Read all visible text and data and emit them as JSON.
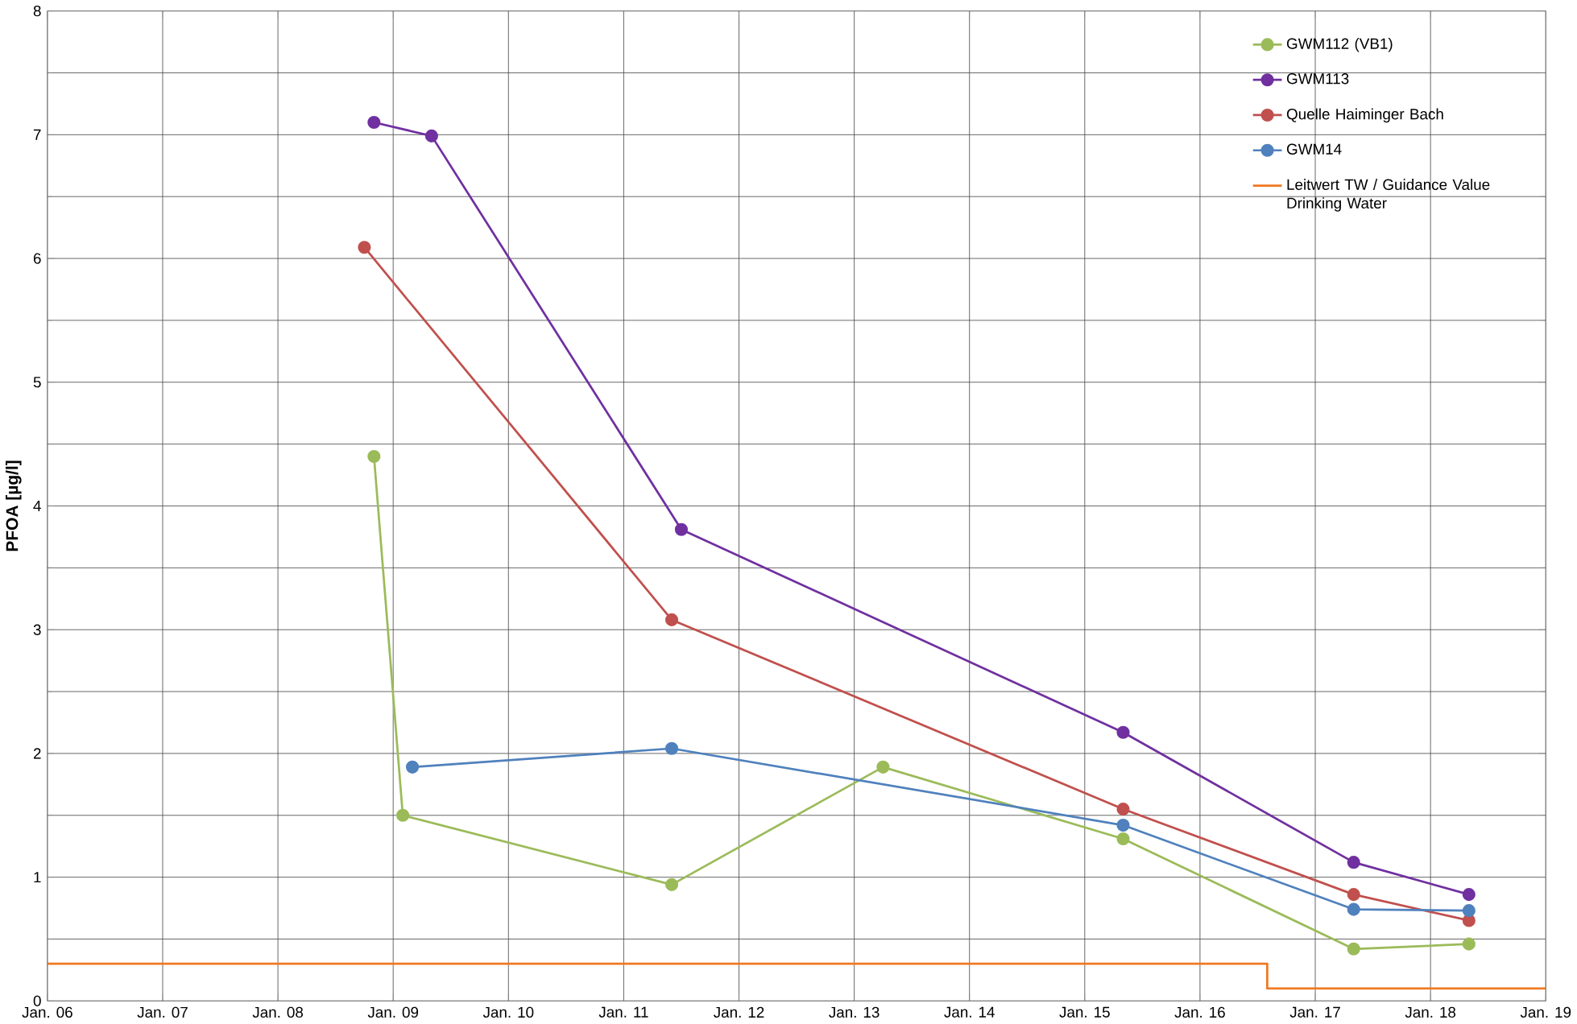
{
  "chart_data": {
    "type": "line",
    "ylabel": "PFOA [µg/l]",
    "xlim": [
      "2006-01",
      "2019-01"
    ],
    "ylim": [
      0,
      8
    ],
    "xticks": [
      {
        "value": "2006-01",
        "label": "Jan. 06"
      },
      {
        "value": "2007-01",
        "label": "Jan. 07"
      },
      {
        "value": "2008-01",
        "label": "Jan. 08"
      },
      {
        "value": "2009-01",
        "label": "Jan. 09"
      },
      {
        "value": "2010-01",
        "label": "Jan. 10"
      },
      {
        "value": "2011-01",
        "label": "Jan. 11"
      },
      {
        "value": "2012-01",
        "label": "Jan. 12"
      },
      {
        "value": "2013-01",
        "label": "Jan. 13"
      },
      {
        "value": "2014-01",
        "label": "Jan. 14"
      },
      {
        "value": "2015-01",
        "label": "Jan. 15"
      },
      {
        "value": "2016-01",
        "label": "Jan. 16"
      },
      {
        "value": "2017-01",
        "label": "Jan. 17"
      },
      {
        "value": "2018-01",
        "label": "Jan. 18"
      },
      {
        "value": "2019-01",
        "label": "Jan. 19"
      }
    ],
    "yticks": [
      0,
      1,
      2,
      3,
      4,
      5,
      6,
      7,
      8
    ],
    "grid": true,
    "legend": "top right",
    "marker": "circle",
    "line_style": "solid",
    "series": [
      {
        "name": "GWM112 (VB1)",
        "color": "#9bbb59",
        "x": [
          "2008-11",
          "2009-02",
          "2011-06",
          "2013-04",
          "2015-05",
          "2017-05",
          "2018-05"
        ],
        "values": [
          4.4,
          1.5,
          0.94,
          1.89,
          1.31,
          0.42,
          0.46
        ]
      },
      {
        "name": "GWM113",
        "color": "#7030a0",
        "x": [
          "2008-11",
          "2009-05",
          "2011-07",
          "2015-05",
          "2017-05",
          "2018-05"
        ],
        "values": [
          7.1,
          6.99,
          3.81,
          2.17,
          1.12,
          0.86
        ]
      },
      {
        "name": "Quelle Haiminger Bach",
        "color": "#c0504d",
        "x": [
          "2008-10",
          "2011-06",
          "2015-05",
          "2017-05",
          "2018-05"
        ],
        "values": [
          6.09,
          3.08,
          1.55,
          0.86,
          0.65
        ]
      },
      {
        "name": "GWM14",
        "color": "#4f81bd",
        "x": [
          "2009-03",
          "2011-06",
          "2015-05",
          "2017-05",
          "2018-05"
        ],
        "values": [
          1.89,
          2.04,
          1.42,
          0.74,
          0.73
        ]
      },
      {
        "name": "Leitwert TW / Guidance Value Drinking Water",
        "color": "#f07820",
        "type": "step",
        "marker": "none",
        "x": [
          "2006-01",
          "2016-08",
          "2019-01"
        ],
        "values": [
          0.3,
          0.1,
          0.1
        ]
      }
    ]
  }
}
